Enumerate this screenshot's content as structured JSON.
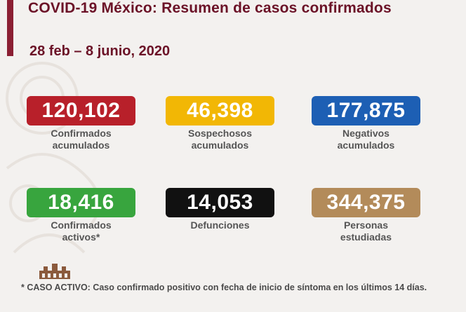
{
  "header": {
    "title": "COVID-19 México: Resumen de casos confirmados",
    "date_range": "28 feb – 8 junio, 2020"
  },
  "cards": [
    {
      "value": "120,102",
      "label": "Confirmados\nacumulados",
      "color": "#b8202a"
    },
    {
      "value": "46,398",
      "label": "Sospechosos\nacumulados",
      "color": "#f2b705"
    },
    {
      "value": "177,875",
      "label": "Negativos\nacumulados",
      "color": "#1d5fb4"
    },
    {
      "value": "18,416",
      "label": "Confirmados\nactivos*",
      "color": "#38a53e"
    },
    {
      "value": "14,053",
      "label": "Defunciones",
      "color": "#111111"
    },
    {
      "value": "344,375",
      "label": "Personas\nestudiadas",
      "color": "#b38b5a"
    }
  ],
  "footnote": "* CASO ACTIVO: Caso confirmado positivo con fecha de inicio de síntoma en los últimos 14 días.",
  "colors": {
    "accent": "#6b1227",
    "bar": "#8b1f33"
  },
  "icons": [
    "ornament-watermark-icon",
    "building-logo-icon"
  ]
}
